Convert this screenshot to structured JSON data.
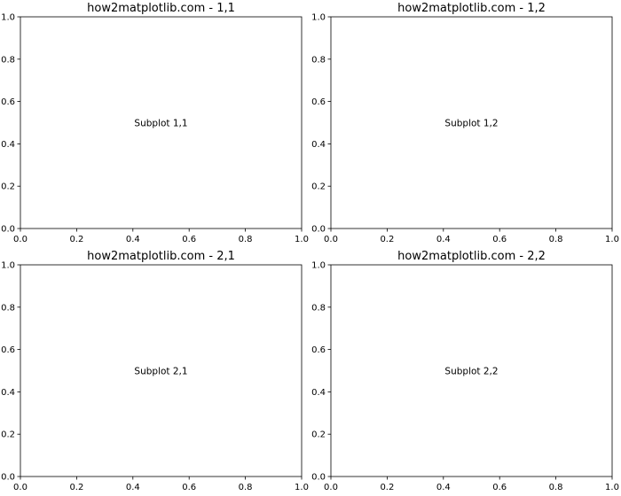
{
  "colors": {
    "axes_edge": "#000000",
    "text": "#000000",
    "background": "#ffffff"
  },
  "chart_data": [
    {
      "type": "scatter",
      "title": "how2matplotlib.com - 1,1",
      "xlabel": "",
      "ylabel": "",
      "xlim": [
        0,
        1
      ],
      "ylim": [
        0,
        1
      ],
      "xticks": [
        "0.0",
        "0.2",
        "0.4",
        "0.6",
        "0.8",
        "1.0"
      ],
      "yticks": [
        "0.0",
        "0.2",
        "0.4",
        "0.6",
        "0.8",
        "1.0"
      ],
      "grid": false,
      "annotations": [
        {
          "text": "Subplot 1,1",
          "x": 0.5,
          "y": 0.5
        }
      ],
      "series": []
    },
    {
      "type": "scatter",
      "title": "how2matplotlib.com - 1,2",
      "xlabel": "",
      "ylabel": "",
      "xlim": [
        0,
        1
      ],
      "ylim": [
        0,
        1
      ],
      "xticks": [
        "0.0",
        "0.2",
        "0.4",
        "0.6",
        "0.8",
        "1.0"
      ],
      "yticks": [
        "0.0",
        "0.2",
        "0.4",
        "0.6",
        "0.8",
        "1.0"
      ],
      "grid": false,
      "annotations": [
        {
          "text": "Subplot 1,2",
          "x": 0.5,
          "y": 0.5
        }
      ],
      "series": []
    },
    {
      "type": "scatter",
      "title": "how2matplotlib.com - 2,1",
      "xlabel": "",
      "ylabel": "",
      "xlim": [
        0,
        1
      ],
      "ylim": [
        0,
        1
      ],
      "xticks": [
        "0.0",
        "0.2",
        "0.4",
        "0.6",
        "0.8",
        "1.0"
      ],
      "yticks": [
        "0.0",
        "0.2",
        "0.4",
        "0.6",
        "0.8",
        "1.0"
      ],
      "grid": false,
      "annotations": [
        {
          "text": "Subplot 2,1",
          "x": 0.5,
          "y": 0.5
        }
      ],
      "series": []
    },
    {
      "type": "scatter",
      "title": "how2matplotlib.com - 2,2",
      "xlabel": "",
      "ylabel": "",
      "xlim": [
        0,
        1
      ],
      "ylim": [
        0,
        1
      ],
      "xticks": [
        "0.0",
        "0.2",
        "0.4",
        "0.6",
        "0.8",
        "1.0"
      ],
      "yticks": [
        "0.0",
        "0.2",
        "0.4",
        "0.6",
        "0.8",
        "1.0"
      ],
      "grid": false,
      "annotations": [
        {
          "text": "Subplot 2,2",
          "x": 0.5,
          "y": 0.5
        }
      ],
      "series": []
    }
  ]
}
